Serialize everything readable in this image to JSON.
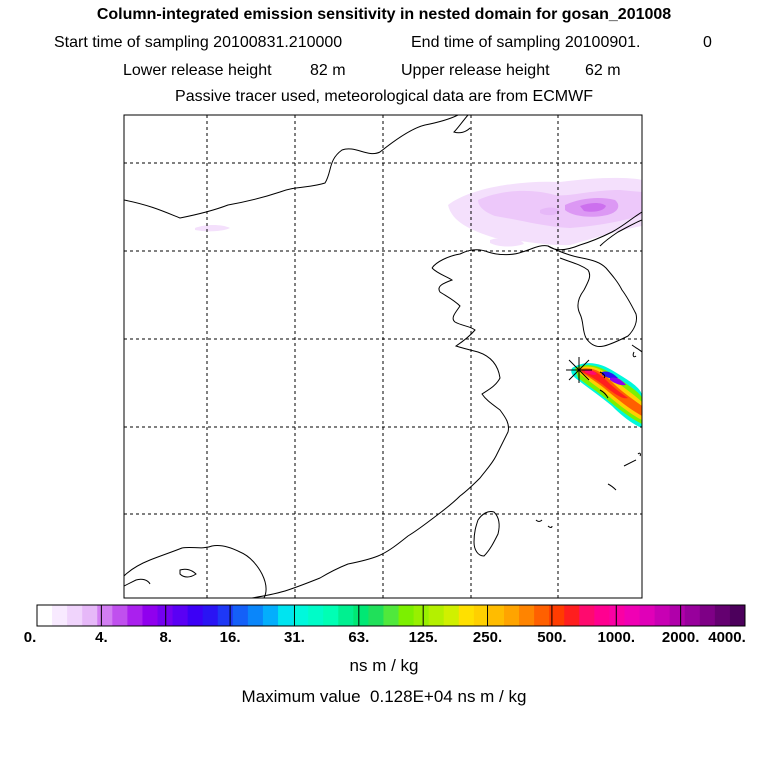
{
  "header": {
    "title": "Column-integrated emission sensitivity in nested domain for gosan_201008",
    "start_label": "Start time of sampling 20100831.210000",
    "end_label": "End time of sampling 20100901.",
    "end_suffix": "0",
    "lower_label": "Lower release height",
    "lower_value": "82 m",
    "upper_label": "Upper release height",
    "upper_value": "62 m",
    "tracer_line": "Passive tracer used, meteorological data are from ECMWF"
  },
  "colorbar": {
    "tick_labels": [
      "0.",
      "4.",
      "8.",
      "16.",
      "31.",
      "63.",
      "125.",
      "250.",
      "500.",
      "1000.",
      "2000.",
      "4000."
    ],
    "colors": [
      "#ffffff",
      "#f8eaff",
      "#f0d4fc",
      "#e6b8f8",
      "#d27ef2",
      "#c050ee",
      "#aa20ee",
      "#9000ee",
      "#7400f0",
      "#5a00f4",
      "#3c00f6",
      "#2a14f4",
      "#1e38f6",
      "#1460f8",
      "#0a86fa",
      "#04aefc",
      "#00e4f0",
      "#00f8dc",
      "#00fcc8",
      "#00ffb4",
      "#00f090",
      "#00e874",
      "#20e05a",
      "#50e83c",
      "#7cf000",
      "#98f000",
      "#b4f000",
      "#d0f000",
      "#ffe000",
      "#ffd000",
      "#ffbc00",
      "#ffa400",
      "#ff8400",
      "#ff6000",
      "#ff3c00",
      "#ff1e1e",
      "#ff0a6e",
      "#ff0090",
      "#fa00a4",
      "#f000b4",
      "#e000b8",
      "#c800b4",
      "#b000aa",
      "#98009c",
      "#7e0086",
      "#640070",
      "#4c005c"
    ],
    "units": "ns m / kg"
  },
  "footer": {
    "max_label": "Maximum value",
    "max_value": "0.128E+04",
    "max_units": "ns m / kg"
  },
  "map": {
    "release_site_marker": "star-icon"
  }
}
